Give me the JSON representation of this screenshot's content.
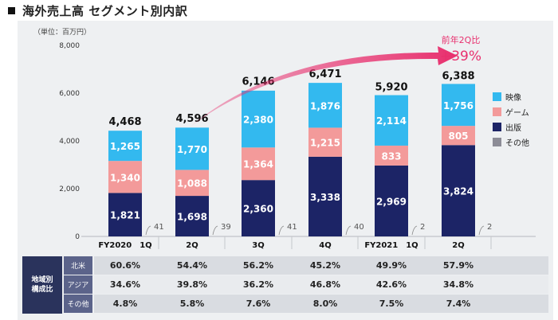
{
  "page": {
    "title": "海外売上高 セグメント別内訳"
  },
  "chart_data": {
    "type": "bar",
    "stacked": true,
    "unit": "（単位：百万円）",
    "categories": [
      "FY2020　1Q",
      "2Q",
      "3Q",
      "4Q",
      "FY2021　1Q",
      "2Q"
    ],
    "ylim": [
      0,
      8000
    ],
    "yticks": [
      0,
      2000,
      4000,
      6000,
      8000
    ],
    "ytick_labels": [
      "0",
      "2,000",
      "4,000",
      "6,000",
      "8,000"
    ],
    "series": [
      {
        "name": "出版",
        "color": "#1c2466",
        "values": [
          1821,
          1698,
          2360,
          3338,
          2969,
          3824
        ],
        "labels": [
          "1,821",
          "1,698",
          "2,360",
          "3,338",
          "2,969",
          "3,824"
        ]
      },
      {
        "name": "ゲーム",
        "color": "#f39a9a",
        "values": [
          1340,
          1088,
          1364,
          1215,
          833,
          805
        ],
        "labels": [
          "1,340",
          "1,088",
          "1,364",
          "1,215",
          "833",
          "805"
        ]
      },
      {
        "name": "映像",
        "color": "#33b9ef",
        "values": [
          1265,
          1770,
          2380,
          1876,
          2114,
          1756
        ],
        "labels": [
          "1,265",
          "1,770",
          "2,380",
          "1,876",
          "2,114",
          "1,756"
        ]
      },
      {
        "name": "その他",
        "color": "#8c8c96",
        "values": [
          41,
          39,
          41,
          40,
          2,
          2
        ],
        "labels": [
          "41",
          "39",
          "41",
          "40",
          "2",
          "2"
        ]
      }
    ],
    "totals": [
      4468,
      4596,
      6146,
      6471,
      5920,
      6388
    ],
    "total_labels": [
      "4,468",
      "4,596",
      "6,146",
      "6,471",
      "5,920",
      "6,388"
    ],
    "legend": [
      "映像",
      "ゲーム",
      "出版",
      "その他"
    ],
    "annotation": {
      "line1": "前年2Q比",
      "line2": "+39%",
      "color": "#e8306e"
    }
  },
  "table": {
    "group_label": [
      "地域別",
      "構成比"
    ],
    "rows": [
      {
        "label": "北米",
        "values": [
          "60.6%",
          "54.4%",
          "56.2%",
          "45.2%",
          "49.9%",
          "57.9%"
        ]
      },
      {
        "label": "アジア",
        "values": [
          "34.6%",
          "39.8%",
          "36.2%",
          "46.8%",
          "42.6%",
          "34.8%"
        ]
      },
      {
        "label": "その他",
        "values": [
          "4.8%",
          "5.8%",
          "7.6%",
          "8.0%",
          "7.5%",
          "7.4%"
        ]
      }
    ]
  },
  "colors": {
    "header_bg": "#2a335c",
    "row_odd": "#d9dce1",
    "row_even": "#e9ebee"
  }
}
